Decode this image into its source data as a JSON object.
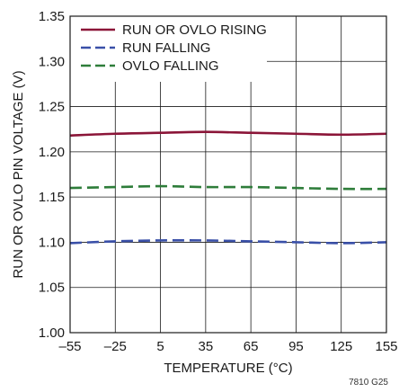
{
  "chart_data": {
    "type": "line",
    "xlabel": "TEMPERATURE (°C)",
    "ylabel": "RUN OR OVLO PIN VOLTAGE (V)",
    "xlim": [
      -55,
      155
    ],
    "ylim": [
      1.0,
      1.35
    ],
    "xticks": [
      -55,
      -25,
      5,
      35,
      65,
      95,
      125,
      155
    ],
    "xtick_labels": [
      "–55",
      "–25",
      "5",
      "35",
      "65",
      "95",
      "125",
      "155"
    ],
    "yticks": [
      1.0,
      1.05,
      1.1,
      1.15,
      1.2,
      1.25,
      1.3,
      1.35
    ],
    "ytick_labels": [
      "1.00",
      "1.05",
      "1.10",
      "1.15",
      "1.20",
      "1.25",
      "1.30",
      "1.35"
    ],
    "grid": true,
    "legend_position": "top-left",
    "series": [
      {
        "name": "RUN OR OVLO RISING",
        "style": "solid",
        "color": "#8b1538",
        "x": [
          -55,
          -25,
          5,
          35,
          65,
          95,
          125,
          155
        ],
        "y": [
          1.218,
          1.22,
          1.221,
          1.222,
          1.221,
          1.22,
          1.219,
          1.22
        ]
      },
      {
        "name": "RUN FALLING",
        "style": "dashed",
        "color": "#3a50a8",
        "x": [
          -55,
          -25,
          5,
          35,
          65,
          95,
          125,
          155
        ],
        "y": [
          1.099,
          1.101,
          1.102,
          1.102,
          1.101,
          1.1,
          1.099,
          1.1
        ]
      },
      {
        "name": "OVLO FALLING",
        "style": "dashed",
        "color": "#2e7d3a",
        "x": [
          -55,
          -25,
          5,
          35,
          65,
          95,
          125,
          155
        ],
        "y": [
          1.16,
          1.161,
          1.162,
          1.161,
          1.161,
          1.16,
          1.159,
          1.159
        ]
      }
    ]
  },
  "figure_code": "7810 G25"
}
